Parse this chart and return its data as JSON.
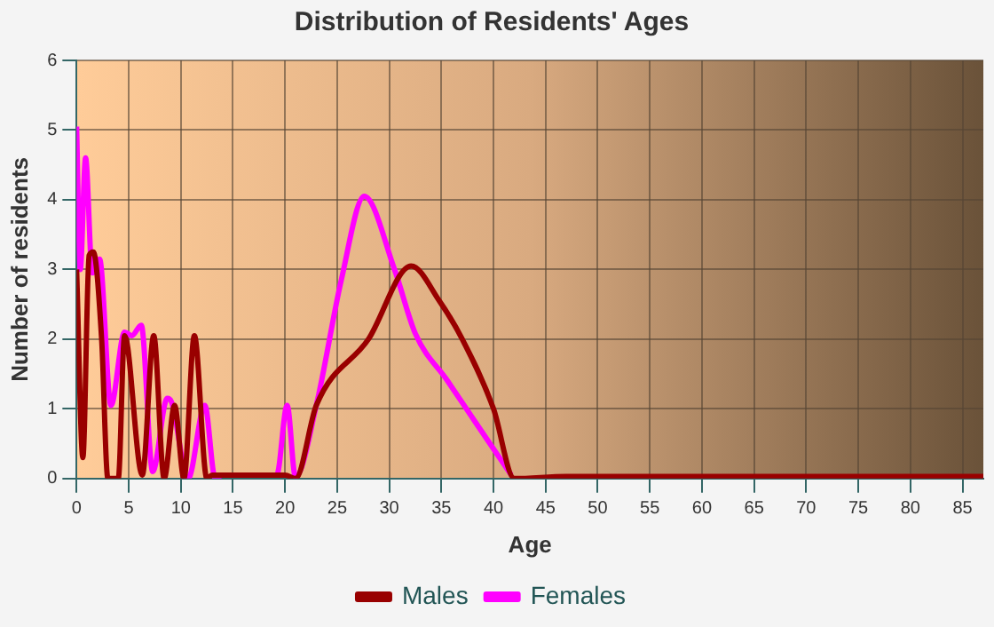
{
  "chart_data": {
    "type": "line",
    "title": "Distribution of Residents' Ages",
    "xlabel": "Age",
    "ylabel": "Number of residents",
    "xlim": [
      0,
      87
    ],
    "xticks": [
      0,
      5,
      10,
      15,
      20,
      25,
      30,
      35,
      40,
      45,
      50,
      55,
      60,
      65,
      70,
      75,
      80,
      85
    ],
    "ylim": [
      0,
      6
    ],
    "yticks": [
      0,
      1,
      2,
      3,
      4,
      5,
      6
    ],
    "grid": true,
    "legend": "bottom",
    "marker": "none",
    "line_style": "solid",
    "series": [
      {
        "name": "Males",
        "color": "#990000",
        "x": [
          0,
          0.6,
          1.2,
          1.6,
          2.4,
          3,
          4,
          4.6,
          6.3,
          7.4,
          8.4,
          9.4,
          10.3,
          11.3,
          12.5,
          13,
          20,
          21,
          23,
          28,
          32.1,
          34.8,
          37,
          40,
          42,
          47,
          87
        ],
        "values": [
          3.0,
          0.3,
          3.2,
          3.25,
          2.0,
          0,
          0,
          2.05,
          0.05,
          2.05,
          0,
          1.05,
          0,
          2.05,
          0,
          0.05,
          0.05,
          0,
          1.05,
          2.0,
          3.05,
          2.55,
          2.0,
          1.0,
          0,
          0.03,
          0.03
        ]
      },
      {
        "name": "Females",
        "color": "#ff00ff",
        "x": [
          0,
          0.35,
          0.86,
          1.5,
          2.2,
          3.3,
          4.6,
          5.3,
          6.2,
          7.3,
          8.7,
          9.1,
          10.7,
          12.3,
          13.3,
          14,
          19.2,
          20.2,
          21,
          23,
          25.4,
          27.6,
          30.5,
          32.5,
          35.6,
          38.3,
          41.7
        ],
        "values": [
          5.05,
          3.0,
          4.6,
          2.95,
          3.15,
          1.05,
          2.1,
          2.05,
          2.2,
          0.1,
          1.15,
          1.1,
          0,
          1.05,
          0,
          0.05,
          0.05,
          1.05,
          0.02,
          1.05,
          2.85,
          4.05,
          3.0,
          2.08,
          1.4,
          0.8,
          0.05
        ]
      }
    ]
  }
}
